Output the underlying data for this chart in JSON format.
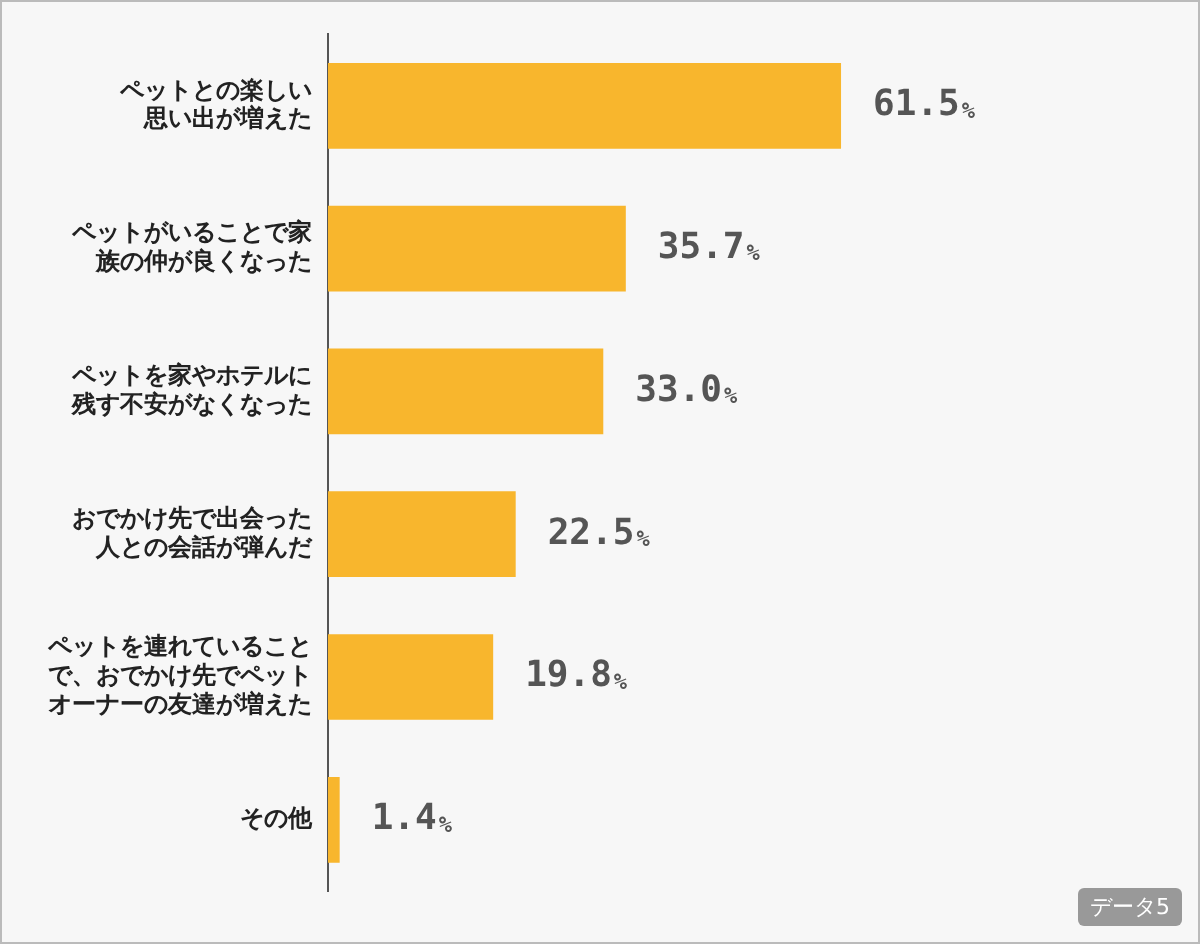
{
  "chart_data": {
    "type": "bar",
    "orientation": "horizontal",
    "categories": [
      "ペットとの楽しい思い出が増えた",
      "ペットがいることで家族の仲が良くなった",
      "ペットを家やホテルに残す不安がなくなった",
      "おでかけ先で出会った人との会話が弾んだ",
      "ペットを連れていることで、おでかけ先でペットオーナーの友達が増えた",
      "その他"
    ],
    "values": [
      61.5,
      35.7,
      33.0,
      22.5,
      19.8,
      1.4
    ],
    "value_labels": [
      "61.5%",
      "35.7%",
      "33.0%",
      "22.5%",
      "19.8%",
      "1.4%"
    ],
    "color": "#f8b62d",
    "grid": false,
    "legend": false,
    "annotations": [
      "データ5"
    ]
  }
}
